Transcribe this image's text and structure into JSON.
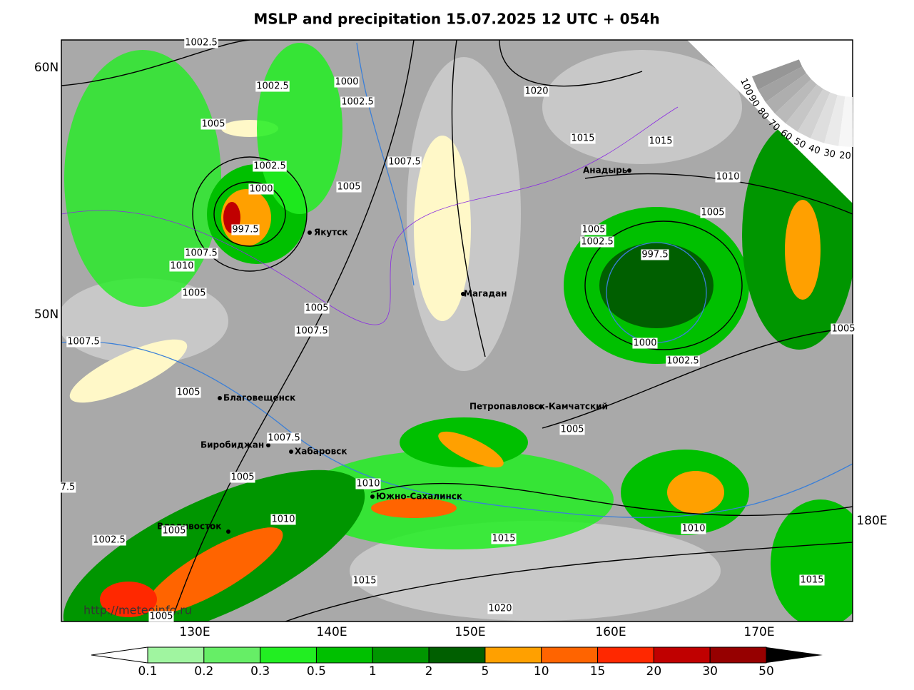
{
  "title": "MSLP and precipitation 15.07.2025 12 UTC + 054h",
  "lat_labels": [
    "60N",
    "50N"
  ],
  "lon_labels": [
    "130E",
    "140E",
    "150E",
    "160E",
    "170E",
    "180E"
  ],
  "cities": [
    "Якутск",
    "Магадан",
    "Анадырь",
    "Петропавловск-Камчатский",
    "Благовещенск",
    "Биробиджан",
    "Хабаровск",
    "Южно-Сахалинск",
    "Владивосток"
  ],
  "isobar_labels": [
    "1002.5",
    "1002.5",
    "1000",
    "1002.5",
    "1005",
    "1007.5",
    "1002.5",
    "1000",
    "1005",
    "997.5",
    "1007.5",
    "1010",
    "1005",
    "1005",
    "1007.5",
    "1007.5",
    "1005",
    "1007.5",
    "1005",
    "1010",
    "1010",
    "1005",
    "1002.5",
    "1015",
    "1015",
    "1020",
    "1005",
    "1020",
    "1015",
    "1015",
    "1010",
    "1005",
    "1005",
    "1002.5",
    "997.5",
    "1000",
    "1002.5",
    "1005",
    "1010",
    "1015",
    "1005",
    "7.5"
  ],
  "cloud_scale": [
    100,
    90,
    80,
    70,
    60,
    50,
    40,
    30,
    20
  ],
  "precip_legend": {
    "colors": [
      "#a0f5a0",
      "#66ee66",
      "#22ee22",
      "#00c000",
      "#009600",
      "#005f00",
      "#ffa000",
      "#ff6400",
      "#ff2800",
      "#c00000",
      "#960000"
    ],
    "ticks": [
      0.1,
      0.2,
      0.3,
      0.5,
      1,
      2,
      5,
      10,
      15,
      20,
      30,
      50
    ]
  },
  "source": "http://meteoinfo.ru"
}
